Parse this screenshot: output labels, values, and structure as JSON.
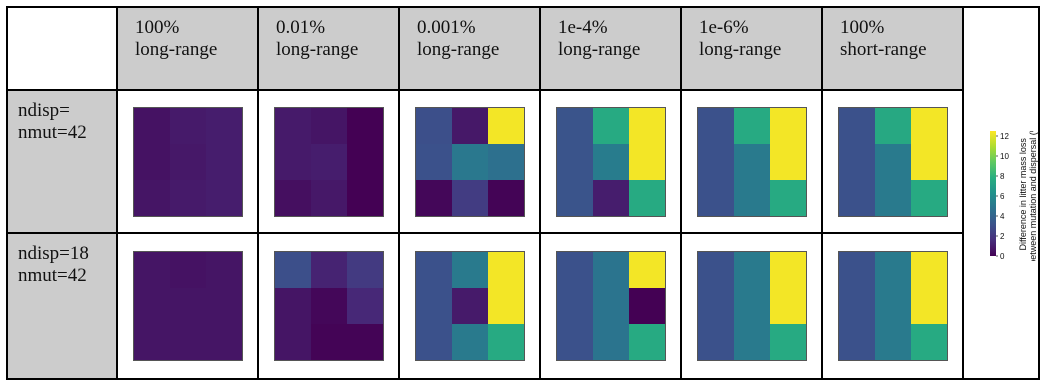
{
  "chart_data": {
    "type": "heatmap",
    "colormap": "viridis",
    "columns": [
      "100%\nlong-range",
      "0.01%\nlong-range",
      "0.001%\nlong-range",
      "1e-4%\nlong-range",
      "1e-6%\nlong-range",
      "100%\nshort-range"
    ],
    "rows": [
      "ndisp=\nnmut=42",
      "ndisp=18\nnmut=42"
    ],
    "grid_size": [
      3,
      3
    ],
    "values": [
      [
        [
          [
            0.6,
            0.9,
            1.0
          ],
          [
            0.6,
            0.8,
            1.0
          ],
          [
            0.7,
            0.9,
            1.0
          ]
        ],
        [
          [
            0.9,
            0.7,
            0.0
          ],
          [
            0.9,
            1.0,
            0.0
          ],
          [
            0.5,
            0.8,
            0.0
          ]
        ],
        [
          [
            3.0,
            0.8,
            12.3
          ],
          [
            3.1,
            5.0,
            4.6
          ],
          [
            0.2,
            2.2,
            0.1
          ]
        ],
        [
          [
            3.2,
            7.6,
            12.3
          ],
          [
            3.2,
            5.2,
            12.3
          ],
          [
            3.2,
            1.0,
            7.6
          ]
        ],
        [
          [
            3.1,
            7.6,
            12.3
          ],
          [
            3.1,
            5.1,
            12.3
          ],
          [
            3.1,
            5.1,
            7.6
          ]
        ],
        [
          [
            3.1,
            7.5,
            12.3
          ],
          [
            3.1,
            5.1,
            12.3
          ],
          [
            3.1,
            5.1,
            7.6
          ]
        ]
      ],
      [
        [
          [
            0.7,
            0.6,
            0.7
          ],
          [
            0.7,
            0.7,
            0.7
          ],
          [
            0.7,
            0.7,
            0.7
          ]
        ],
        [
          [
            3.0,
            1.2,
            2.1
          ],
          [
            0.7,
            0.2,
            1.4
          ],
          [
            0.7,
            0.1,
            0.1
          ]
        ],
        [
          [
            3.1,
            5.1,
            12.3
          ],
          [
            3.1,
            0.9,
            12.3
          ],
          [
            3.1,
            5.1,
            7.6
          ]
        ],
        [
          [
            3.1,
            4.8,
            12.3
          ],
          [
            3.1,
            4.8,
            0.0
          ],
          [
            3.1,
            4.8,
            7.6
          ]
        ],
        [
          [
            3.1,
            5.1,
            12.3
          ],
          [
            3.1,
            5.1,
            12.3
          ],
          [
            3.1,
            5.1,
            7.6
          ]
        ],
        [
          [
            3.1,
            5.1,
            12.3
          ],
          [
            3.1,
            5.1,
            12.3
          ],
          [
            3.1,
            5.1,
            7.6
          ]
        ]
      ]
    ],
    "colorbar": {
      "range": [
        0,
        12.5
      ],
      "ticks": [
        "0",
        "2",
        "4",
        "6",
        "8",
        "10",
        "12"
      ],
      "label_line1": "Difference in litter mass loss",
      "label_line2": "between mutation and dispersal (%)"
    }
  }
}
